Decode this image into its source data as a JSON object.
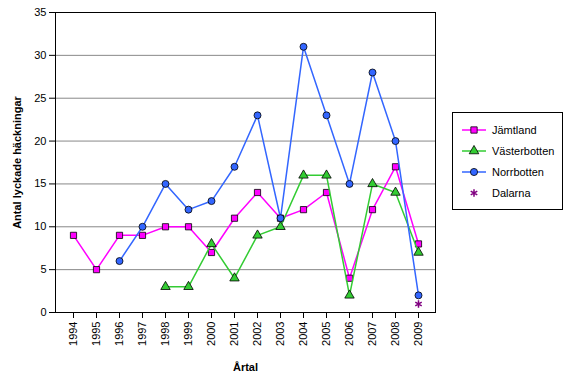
{
  "chart_data": {
    "type": "line",
    "x_label": "Årtal",
    "y_label": "Antal lyckade häckningar",
    "categories": [
      "1994",
      "1995",
      "1996",
      "1997",
      "1998",
      "1999",
      "2000",
      "2001",
      "2002",
      "2003",
      "2004",
      "2005",
      "2006",
      "2007",
      "2008",
      "2009"
    ],
    "ylim": [
      0,
      35
    ],
    "yticks": [
      0,
      5,
      10,
      15,
      20,
      25,
      30,
      35
    ],
    "grid": true,
    "legend": "right",
    "series": [
      {
        "name": "Jämtland",
        "color": "#ff00ff",
        "marker": "square",
        "line_style": "solid",
        "values": [
          9,
          5,
          9,
          9,
          10,
          10,
          7,
          11,
          14,
          11,
          12,
          14,
          4,
          12,
          17,
          8
        ]
      },
      {
        "name": "Västerbotten",
        "color": "#33cc33",
        "marker": "triangle",
        "line_style": "solid",
        "values": [
          null,
          null,
          null,
          null,
          3,
          3,
          8,
          4,
          9,
          10,
          16,
          16,
          2,
          15,
          14,
          7
        ]
      },
      {
        "name": "Norrbotten",
        "color": "#3366ff",
        "marker": "circle",
        "line_style": "solid",
        "values": [
          null,
          null,
          6,
          10,
          15,
          12,
          13,
          17,
          23,
          11,
          31,
          23,
          15,
          28,
          20,
          2
        ]
      },
      {
        "name": "Dalarna",
        "color": "#800080",
        "marker": "asterisk",
        "line_style": "none",
        "values": [
          null,
          null,
          null,
          null,
          null,
          null,
          null,
          null,
          null,
          null,
          null,
          null,
          null,
          null,
          null,
          1
        ]
      }
    ]
  }
}
